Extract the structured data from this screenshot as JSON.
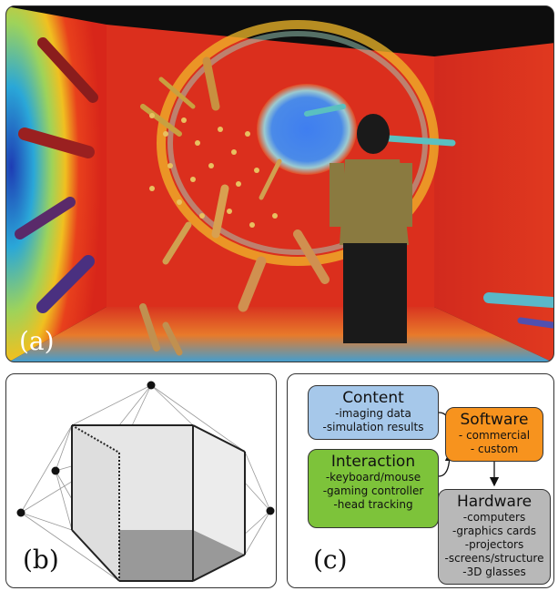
{
  "panels": {
    "a": {
      "label": "(a)"
    },
    "b": {
      "label": "(b)"
    },
    "c": {
      "label": "(c)"
    }
  },
  "flow": {
    "content": {
      "title": "Content",
      "items": [
        "-imaging data",
        "-simulation results"
      ],
      "color": "#a6c8ea"
    },
    "interaction": {
      "title": "Interaction",
      "items": [
        "-keyboard/mouse",
        "-gaming controller",
        "-head tracking"
      ],
      "color": "#7dc33a"
    },
    "software": {
      "title": "Software",
      "items": [
        "- commercial",
        "- custom"
      ],
      "color": "#f7931e"
    },
    "hardware": {
      "title": "Hardware",
      "items": [
        "-computers",
        "-graphics cards",
        "-projectors",
        "-screens/structure",
        "-3D glasses"
      ],
      "color": "#b8b8b8"
    }
  }
}
